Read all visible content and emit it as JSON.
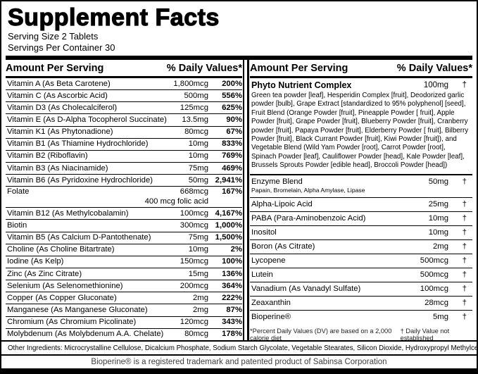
{
  "header": {
    "title": "Supplement Facts",
    "serving_size": "Serving Size 2 Tablets",
    "servings_per_container": "Servings Per Container 30"
  },
  "left_table": {
    "col_amount": "Amount Per Serving",
    "col_dv": "% Daily Values*",
    "rows": [
      {
        "name": "Vitamin A (As Beta Carotene)",
        "amount": "1,800mcg",
        "dv": "200%"
      },
      {
        "name": "Vitamin C (As Ascorbic Acid)",
        "amount": "500mg",
        "dv": "556%"
      },
      {
        "name": "Vitamin D3 (As Cholecalciferol)",
        "amount": "125mcg",
        "dv": "625%"
      },
      {
        "name": "Vitamin E (As D-Alpha Tocopherol Succinate)",
        "amount": "13.5mg",
        "dv": "90%"
      },
      {
        "name": "Vitamin K1 (As Phytonadione)",
        "amount": "80mcg",
        "dv": "67%"
      },
      {
        "name": "Vitamin B1 (As Thiamine Hydrochloride)",
        "amount": "10mg",
        "dv": "833%"
      },
      {
        "name": "Vitamin B2 (Riboflavin)",
        "amount": "10mg",
        "dv": "769%"
      },
      {
        "name": "Vitamin B3 (As Niacinamide)",
        "amount": "75mg",
        "dv": "469%"
      },
      {
        "name": "Vitamin B6 (As Pyridoxine Hydrochloride)",
        "amount": "50mg",
        "dv": "2,941%"
      },
      {
        "name": "Folate",
        "amount": "668mcg",
        "dv": "167%",
        "sub": "400 mcg folic acid"
      },
      {
        "name": "Vitamin B12 (As Methylcobalamin)",
        "amount": "100mcg",
        "dv": "4,167%"
      },
      {
        "name": "Biotin",
        "amount": "300mcg",
        "dv": "1,000%"
      },
      {
        "name": "Vitamin B5 (As Calcium D-Pantothenate)",
        "amount": "75mg",
        "dv": "1,500%"
      },
      {
        "name": "Choline (As Choline Bitartrate)",
        "amount": "10mg",
        "dv": "2%"
      },
      {
        "name": "Iodine (As Kelp)",
        "amount": "150mcg",
        "dv": "100%"
      },
      {
        "name": "Zinc (As Zinc Citrate)",
        "amount": "15mg",
        "dv": "136%"
      },
      {
        "name": "Selenium (As Selenomethionine)",
        "amount": "200mcg",
        "dv": "364%"
      },
      {
        "name": "Copper (As Copper Gluconate)",
        "amount": "2mg",
        "dv": "222%"
      },
      {
        "name": "Manganese (As Manganese Gluconate)",
        "amount": "2mg",
        "dv": "87%"
      },
      {
        "name": "Chromium (As Chromium Picolinate)",
        "amount": "120mcg",
        "dv": "343%"
      },
      {
        "name": "Molybdenum (As Molybdenum A.A. Chelate)",
        "amount": "80mcg",
        "dv": "178%"
      }
    ]
  },
  "right_table": {
    "col_amount": "Amount Per Serving",
    "col_dv": "% Daily Values*",
    "phyto": {
      "name": "Phyto Nutrient Complex",
      "amount": "100mg",
      "dv": "†",
      "description": "Green tea powder [leaf], Hesperidin Complex [fruit], Deodorized garlic powder [bulb], Grape Extract [standardized to 95% polyphenol] [seed], Fruit Blend (Orange Powder [fruit], Pineapple Powder [ fruit], Apple Powder [fruit], Grape Powder [fruit], Blueberry Powder [fruit], Cranberry powder [fruit], Papaya Powder [fruit], Elderberry Powder [ fruit], Bilberry Powder [fruit], Black Currant Powder [fruit], Kiwi Powder [fruit]), and Vegetable Blend (Wild Yam Powder [root], Carrot Powder [root], Spinach Powder [leaf], Cauliflower Powder [head], Kale Powder [leaf], Brussels Sprouts Powder [edible head], Broccoli Powder [head])"
    },
    "rows": [
      {
        "name": "Enzyme Blend",
        "amount": "50mg",
        "dv": "†",
        "sub": "Papain, Bromelain, Alpha Amylase, Lipase"
      },
      {
        "name": "Alpha-Lipoic Acid",
        "amount": "25mg",
        "dv": "†"
      },
      {
        "name": "PABA (Para-Aminobenzoic Acid)",
        "amount": "10mg",
        "dv": "†"
      },
      {
        "name": "Inositol",
        "amount": "10mg",
        "dv": "†"
      },
      {
        "name": "Boron (As Citrate)",
        "amount": "2mg",
        "dv": "†"
      },
      {
        "name": "Lycopene",
        "amount": "500mcg",
        "dv": "†"
      },
      {
        "name": "Lutein",
        "amount": "500mcg",
        "dv": "†"
      },
      {
        "name": "Vanadium (As Vanadyl Sulfate)",
        "amount": "100mcg",
        "dv": "†"
      },
      {
        "name": "Zeaxanthin",
        "amount": "28mcg",
        "dv": "†"
      },
      {
        "name": "Bioperine®",
        "amount": "5mg",
        "dv": "†"
      }
    ],
    "footnote_left": "*Percent Daily Values (DV) are based on a 2,000 calorie diet",
    "footnote_right": "† Daily Value not established"
  },
  "footer": {
    "other_ingredients": "Other Ingredients: Microcrystalline Cellulose, Dicalcium Phosphate, Sodium Starch Glycolate, Vegetable Stearates, Silicon Dioxide, Hydroxypropyl Methylcellulose, PEG",
    "trademark": "Bioperine® is a registered trademark and patented product of Sabinsa Corporation"
  },
  "colors": {
    "border": "#000000",
    "background": "#ffffff",
    "text": "#000000",
    "muted_text": "#3d3d3d"
  }
}
